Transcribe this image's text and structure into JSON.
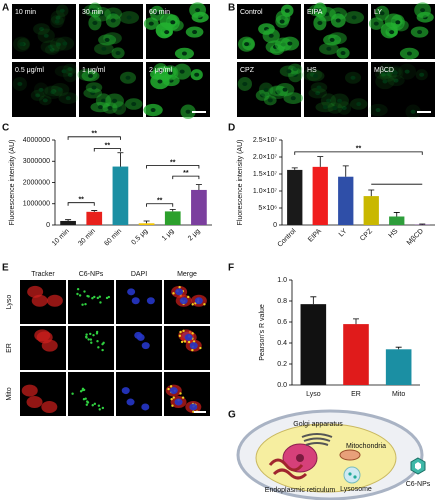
{
  "panel_letters": [
    "A",
    "B",
    "C",
    "D",
    "E",
    "F",
    "G"
  ],
  "panel_a": {
    "labels": [
      "10 min",
      "30 min",
      "60 min",
      "0.5 μg/ml",
      "1 μg/ml",
      "2 μg/ml"
    ]
  },
  "panel_b": {
    "labels": [
      "Control",
      "EIPA",
      "LY",
      "CPZ",
      "HS",
      "MβCD"
    ]
  },
  "chart_data": [
    {
      "type": "bar",
      "y_label": "Fluorescence intensity (AU)",
      "categories": [
        "10 min",
        "30 min",
        "60 min",
        "0.5 μg",
        "1 μg",
        "2 μg"
      ],
      "values": [
        190000,
        620000,
        2750000,
        80000,
        640000,
        1650000
      ],
      "errors": [
        60000,
        60000,
        650000,
        110000,
        90000,
        250000
      ],
      "colors": [
        "#1a1a1a",
        "#e8211c",
        "#1b8fa3",
        "#f2c400",
        "#2ca02c",
        "#7b3f9e"
      ],
      "ylim": [
        0,
        4000000
      ],
      "yticks": [
        0,
        1000000,
        2000000,
        3000000,
        4000000
      ],
      "annotations": [
        "**",
        "**",
        "**",
        "**",
        "**",
        "**"
      ]
    },
    {
      "type": "bar",
      "y_label": "Fluorescence intensity (AU)",
      "categories": [
        "Control",
        "EIPA",
        "LY",
        "CPZ",
        "HS",
        "MβCD"
      ],
      "values": [
        16200000,
        17100000,
        14200000,
        8500000,
        2500000,
        100000
      ],
      "errors": [
        600000,
        3000000,
        3200000,
        1800000,
        1200000,
        200000
      ],
      "colors": [
        "#1a1a1a",
        "#f01d1d",
        "#2f4fa8",
        "#c9b800",
        "#2e9e3b",
        "#7b3f9e"
      ],
      "ylim": [
        0,
        25000000
      ],
      "yticks": [
        0,
        {
          "value": 5000000,
          "label": "5×10⁶"
        },
        {
          "value": 10000000,
          "label": "1.0×10⁷"
        },
        {
          "value": 15000000,
          "label": "1.5×10⁷"
        },
        {
          "value": 20000000,
          "label": "2.0×10⁷"
        },
        {
          "value": 25000000,
          "label": "2.5×10⁷"
        }
      ],
      "annotations": [
        "**"
      ]
    },
    {
      "type": "bar",
      "y_label": "Pearson's R value",
      "categories": [
        "Lyso",
        "ER",
        "Mito"
      ],
      "values": [
        0.77,
        0.58,
        0.34
      ],
      "errors": [
        0.07,
        0.05,
        0.02
      ],
      "colors": [
        "#111111",
        "#e01b1b",
        "#1b8fa3"
      ],
      "ylim": [
        0,
        1
      ],
      "yticks": [
        {
          "value": 0,
          "label": "0.0"
        },
        0.2,
        0.4,
        0.6,
        0.8,
        {
          "value": 1,
          "label": "1.0"
        }
      ]
    }
  ],
  "panel_e": {
    "columns": [
      "Tracker",
      "C6-NPs",
      "DAPI",
      "Merge"
    ],
    "rows": [
      "Lyso",
      "ER",
      "Mito"
    ]
  },
  "panel_g": {
    "labels": [
      "Golgi apparatus",
      "Mitochondria",
      "Endoplasmic reticulum",
      "Lysosome",
      "C6-NPs"
    ]
  }
}
